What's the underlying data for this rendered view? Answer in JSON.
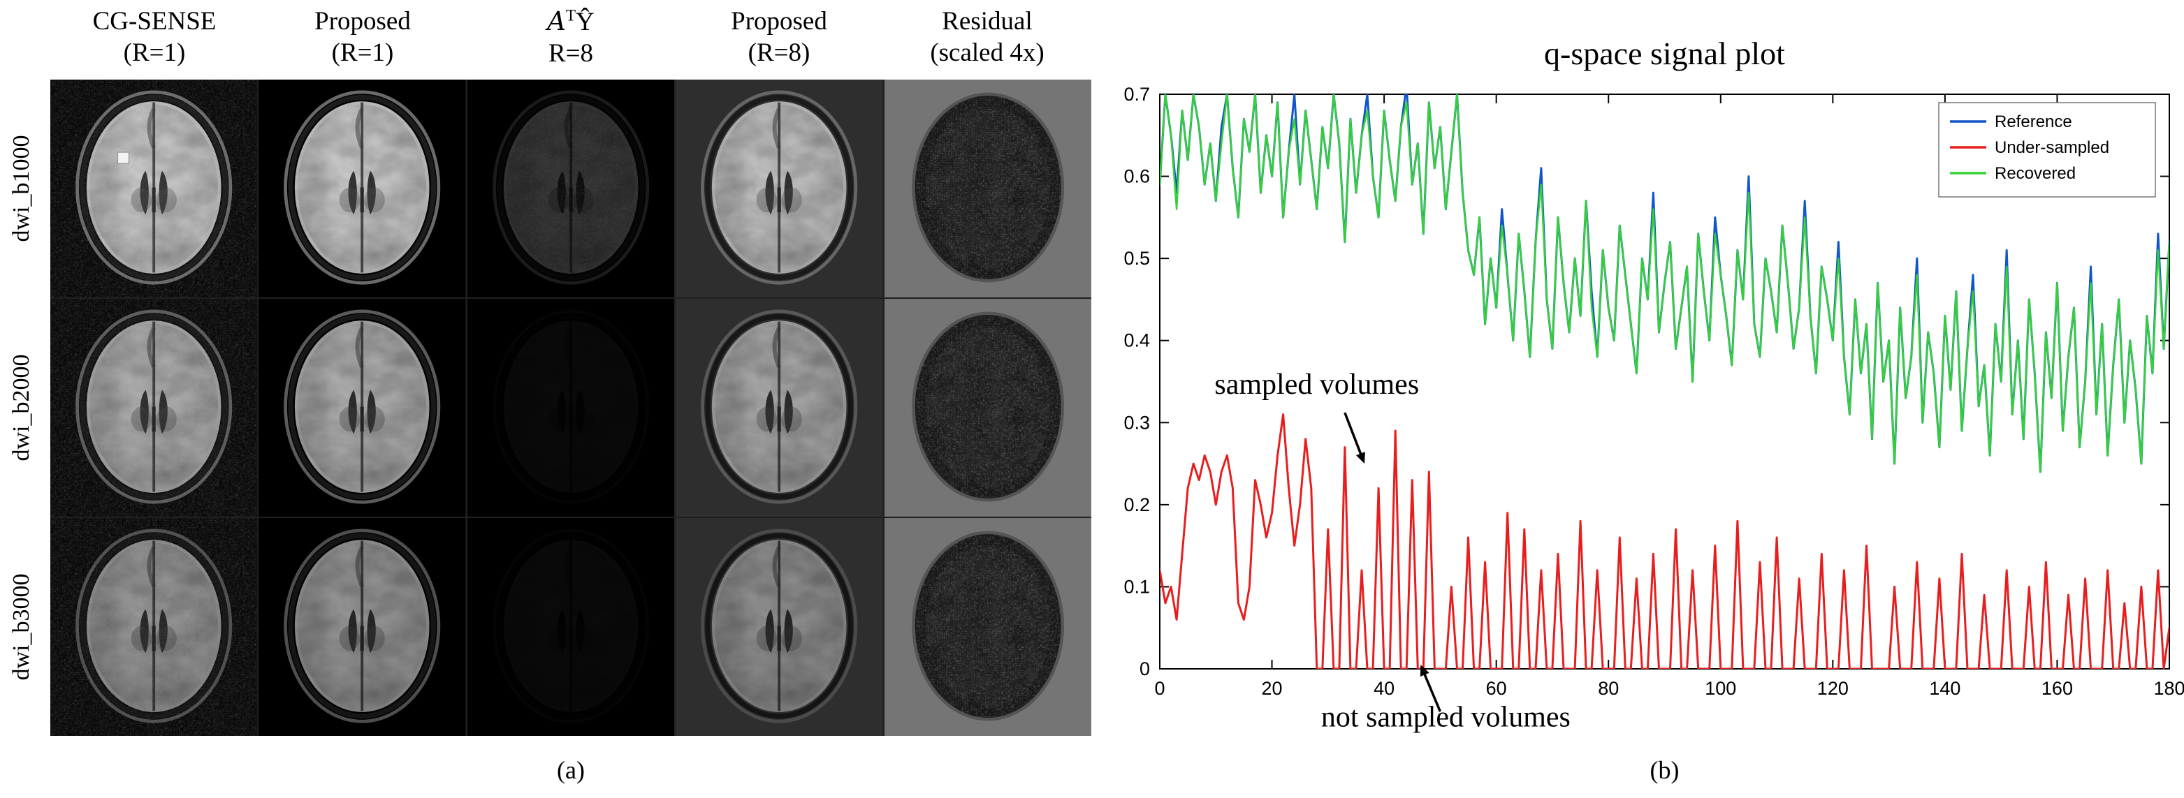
{
  "figure": {
    "panel_a": {
      "caption": "(a)",
      "columns": [
        {
          "line1": "CG-SENSE",
          "line2": "(R=1)"
        },
        {
          "line1": "Proposed",
          "line2": "(R=1)"
        },
        {
          "line1_pre": "A",
          "line1_sup": "T",
          "line1_post": "Ŷ",
          "line2": "R=8"
        },
        {
          "line1": "Proposed",
          "line2": "(R=8)"
        },
        {
          "line1": "Residual",
          "line2": "(scaled 4x)"
        }
      ],
      "rows": [
        "dwi_b1000",
        "dwi_b2000",
        "dwi_b3000"
      ]
    },
    "panel_b": {
      "caption": "(b)"
    }
  },
  "chart_data": {
    "type": "line",
    "title": "q-space signal plot",
    "xlabel": "",
    "ylabel": "",
    "xlim": [
      0,
      180
    ],
    "ylim": [
      0,
      0.7
    ],
    "xticks": [
      0,
      20,
      40,
      60,
      80,
      100,
      120,
      140,
      160,
      180
    ],
    "yticks": [
      0,
      0.1,
      0.2,
      0.3,
      0.4,
      0.5,
      0.6,
      0.7
    ],
    "grid": false,
    "legend_position": "top-right",
    "x_step": 1,
    "series": [
      {
        "name": "Reference",
        "color": "#1155cc",
        "values": [
          0.59,
          0.7,
          0.65,
          0.58,
          0.68,
          0.62,
          0.7,
          0.66,
          0.59,
          0.64,
          0.57,
          0.66,
          0.7,
          0.61,
          0.55,
          0.67,
          0.63,
          0.7,
          0.58,
          0.65,
          0.6,
          0.69,
          0.55,
          0.63,
          0.7,
          0.59,
          0.68,
          0.62,
          0.56,
          0.66,
          0.61,
          0.7,
          0.64,
          0.52,
          0.67,
          0.58,
          0.65,
          0.7,
          0.6,
          0.55,
          0.68,
          0.62,
          0.57,
          0.66,
          0.71,
          0.59,
          0.64,
          0.53,
          0.69,
          0.61,
          0.66,
          0.56,
          0.63,
          0.7,
          0.58,
          0.51,
          0.48,
          0.55,
          0.42,
          0.5,
          0.44,
          0.56,
          0.48,
          0.4,
          0.53,
          0.46,
          0.38,
          0.52,
          0.61,
          0.45,
          0.39,
          0.55,
          0.47,
          0.41,
          0.5,
          0.43,
          0.57,
          0.46,
          0.38,
          0.51,
          0.44,
          0.4,
          0.54,
          0.48,
          0.42,
          0.36,
          0.5,
          0.45,
          0.58,
          0.41,
          0.47,
          0.52,
          0.39,
          0.44,
          0.49,
          0.35,
          0.53,
          0.46,
          0.4,
          0.55,
          0.48,
          0.43,
          0.37,
          0.51,
          0.45,
          0.6,
          0.42,
          0.38,
          0.5,
          0.46,
          0.41,
          0.54,
          0.47,
          0.39,
          0.44,
          0.57,
          0.43,
          0.36,
          0.49,
          0.45,
          0.4,
          0.52,
          0.38,
          0.31,
          0.45,
          0.36,
          0.42,
          0.28,
          0.47,
          0.35,
          0.4,
          0.25,
          0.44,
          0.33,
          0.38,
          0.5,
          0.3,
          0.41,
          0.36,
          0.27,
          0.43,
          0.34,
          0.46,
          0.29,
          0.39,
          0.48,
          0.32,
          0.37,
          0.26,
          0.42,
          0.35,
          0.51,
          0.31,
          0.4,
          0.28,
          0.45,
          0.36,
          0.24,
          0.41,
          0.33,
          0.47,
          0.29,
          0.38,
          0.44,
          0.27,
          0.35,
          0.49,
          0.31,
          0.42,
          0.26,
          0.37,
          0.45,
          0.3,
          0.4,
          0.34,
          0.25,
          0.43,
          0.36,
          0.53,
          0.39,
          0.52
        ]
      },
      {
        "name": "Under-sampled",
        "color": "#e81e1e",
        "values": [
          0.12,
          0.08,
          0.1,
          0.06,
          0.14,
          0.22,
          0.25,
          0.23,
          0.26,
          0.24,
          0.2,
          0.24,
          0.26,
          0.22,
          0.08,
          0.06,
          0.1,
          0.23,
          0.2,
          0.16,
          0.19,
          0.26,
          0.31,
          0.22,
          0.15,
          0.2,
          0.28,
          0.22,
          0,
          0,
          0.17,
          0,
          0,
          0.27,
          0,
          0,
          0.12,
          0,
          0,
          0.22,
          0,
          0,
          0.29,
          0,
          0,
          0.23,
          0,
          0,
          0.24,
          0,
          0,
          0,
          0.1,
          0,
          0,
          0.16,
          0,
          0,
          0.13,
          0,
          0,
          0,
          0.19,
          0,
          0,
          0.17,
          0,
          0,
          0.12,
          0,
          0,
          0.14,
          0,
          0,
          0,
          0.18,
          0,
          0,
          0.12,
          0,
          0,
          0,
          0.16,
          0,
          0,
          0.11,
          0,
          0,
          0.14,
          0,
          0,
          0,
          0.17,
          0,
          0,
          0.12,
          0,
          0,
          0,
          0.15,
          0,
          0,
          0,
          0.18,
          0,
          0,
          0,
          0.13,
          0,
          0,
          0.16,
          0,
          0,
          0,
          0.11,
          0,
          0,
          0,
          0.14,
          0,
          0,
          0,
          0.12,
          0,
          0,
          0,
          0.15,
          0,
          0,
          0,
          0,
          0.1,
          0,
          0,
          0,
          0.13,
          0,
          0,
          0,
          0.11,
          0,
          0,
          0,
          0.14,
          0,
          0,
          0,
          0.09,
          0,
          0,
          0,
          0.12,
          0,
          0,
          0,
          0.1,
          0,
          0,
          0.13,
          0,
          0,
          0,
          0.09,
          0,
          0,
          0.11,
          0,
          0,
          0,
          0.12,
          0,
          0,
          0.08,
          0,
          0,
          0.1,
          0,
          0,
          0.12,
          0,
          0.05
        ]
      },
      {
        "name": "Recovered",
        "color": "#35d235",
        "values": [
          0.59,
          0.7,
          0.65,
          0.56,
          0.68,
          0.62,
          0.7,
          0.66,
          0.59,
          0.64,
          0.57,
          0.64,
          0.7,
          0.61,
          0.55,
          0.67,
          0.63,
          0.7,
          0.58,
          0.65,
          0.6,
          0.69,
          0.55,
          0.63,
          0.67,
          0.59,
          0.68,
          0.62,
          0.56,
          0.66,
          0.61,
          0.7,
          0.64,
          0.52,
          0.67,
          0.58,
          0.65,
          0.68,
          0.6,
          0.55,
          0.68,
          0.62,
          0.57,
          0.66,
          0.69,
          0.59,
          0.64,
          0.53,
          0.69,
          0.61,
          0.66,
          0.56,
          0.63,
          0.7,
          0.58,
          0.51,
          0.48,
          0.55,
          0.42,
          0.5,
          0.44,
          0.54,
          0.48,
          0.4,
          0.53,
          0.46,
          0.38,
          0.52,
          0.59,
          0.45,
          0.39,
          0.55,
          0.47,
          0.41,
          0.5,
          0.43,
          0.57,
          0.44,
          0.38,
          0.51,
          0.44,
          0.4,
          0.54,
          0.48,
          0.42,
          0.36,
          0.5,
          0.45,
          0.56,
          0.41,
          0.47,
          0.52,
          0.39,
          0.44,
          0.49,
          0.35,
          0.53,
          0.46,
          0.4,
          0.53,
          0.48,
          0.43,
          0.37,
          0.51,
          0.45,
          0.58,
          0.42,
          0.38,
          0.5,
          0.46,
          0.41,
          0.54,
          0.47,
          0.39,
          0.44,
          0.55,
          0.43,
          0.36,
          0.49,
          0.45,
          0.4,
          0.5,
          0.38,
          0.31,
          0.45,
          0.36,
          0.42,
          0.28,
          0.47,
          0.35,
          0.4,
          0.25,
          0.44,
          0.33,
          0.38,
          0.48,
          0.3,
          0.41,
          0.36,
          0.27,
          0.43,
          0.34,
          0.46,
          0.29,
          0.39,
          0.46,
          0.32,
          0.37,
          0.26,
          0.42,
          0.35,
          0.49,
          0.31,
          0.4,
          0.28,
          0.45,
          0.36,
          0.24,
          0.41,
          0.33,
          0.47,
          0.29,
          0.38,
          0.44,
          0.27,
          0.35,
          0.47,
          0.31,
          0.42,
          0.26,
          0.37,
          0.45,
          0.3,
          0.4,
          0.34,
          0.25,
          0.43,
          0.36,
          0.51,
          0.39,
          0.52
        ]
      }
    ],
    "annotations": [
      {
        "text": "sampled volumes",
        "text_x": 28,
        "text_y": 0.335,
        "arrow": {
          "x1": 33,
          "y1": 0.312,
          "x2": 36.5,
          "y2": 0.25
        }
      },
      {
        "text": "not sampled volumes",
        "text_x": 51,
        "text_y": -0.07,
        "arrow": {
          "x1": 50,
          "y1": -0.052,
          "x2": 46.5,
          "y2": 0.005
        }
      }
    ]
  }
}
